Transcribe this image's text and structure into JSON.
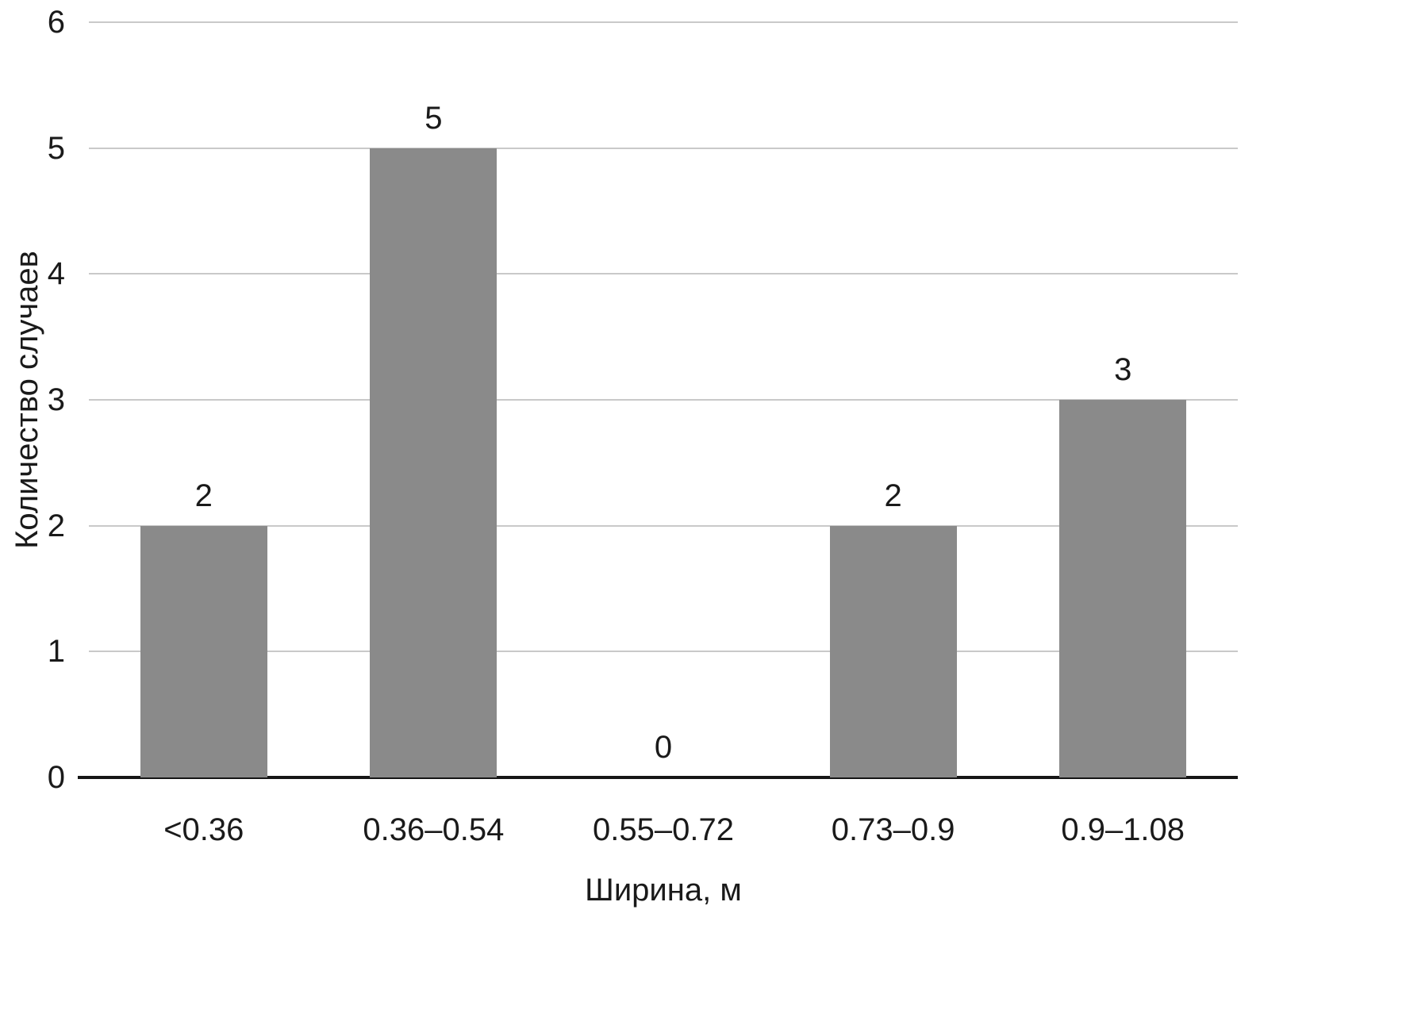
{
  "chart_data": {
    "type": "bar",
    "title": "",
    "categories": [
      "<0.36",
      "0.36–0.54",
      "0.55–0.72",
      "0.73–0.9",
      "0.9–1.08"
    ],
    "values": [
      2,
      5,
      0,
      2,
      3
    ],
    "data_labels": [
      "2",
      "5",
      "0",
      "2",
      "3"
    ],
    "xlabel": "Ширина, м",
    "ylabel": "Количество случаев",
    "ylim": [
      0,
      6
    ],
    "yticks": [
      0,
      1,
      2,
      3,
      4,
      5,
      6
    ],
    "grid": true,
    "legend": "none",
    "bar_color": "#8a8a8a",
    "gridline_color": "#c9c9c9",
    "axis_color": "#161616",
    "background_color": "#ffffff"
  }
}
